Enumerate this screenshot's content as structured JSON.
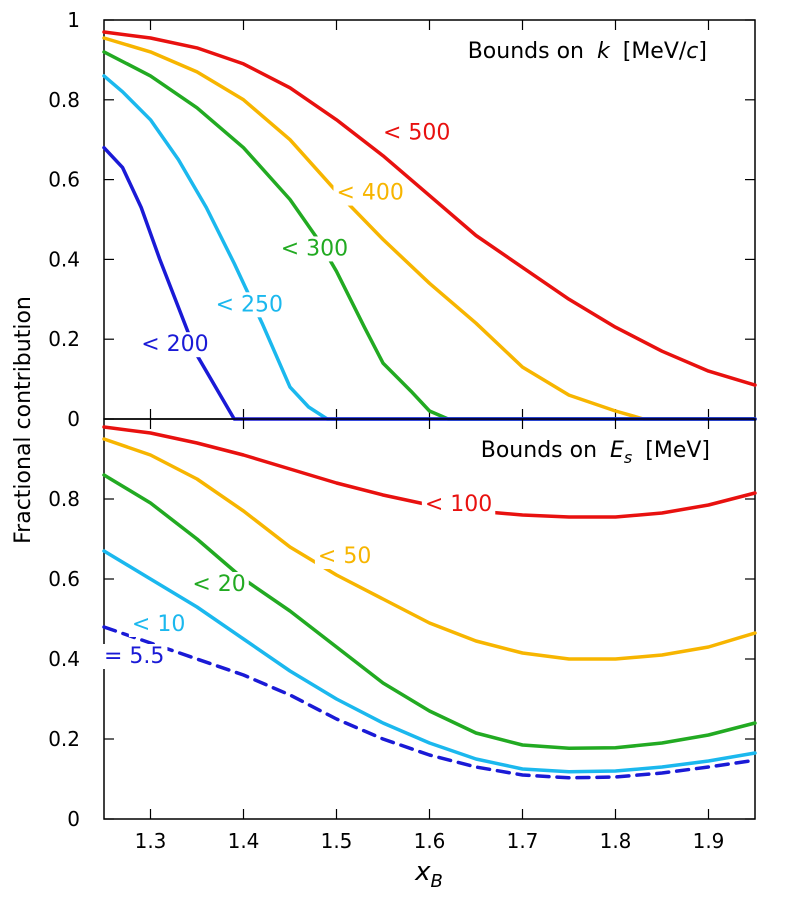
{
  "chart_data": [
    {
      "type": "line",
      "title_prefix": "Bounds on",
      "title_var": "k",
      "title_unit": "[MeV/",
      "title_unit_var": "c",
      "title_unit_close": "]",
      "xlim": [
        1.25,
        1.95
      ],
      "ylim": [
        0,
        1
      ],
      "yticks": [
        "0",
        "0.2",
        "0.4",
        "0.6",
        "0.8",
        "1"
      ],
      "ytick_values": [
        0,
        0.2,
        0.4,
        0.6,
        0.8,
        1.0
      ],
      "series": [
        {
          "name": "< 500",
          "label": "< 500",
          "color": "#e8110f",
          "dashed": false,
          "x": [
            1.25,
            1.3,
            1.35,
            1.4,
            1.45,
            1.5,
            1.55,
            1.6,
            1.65,
            1.7,
            1.75,
            1.8,
            1.85,
            1.9,
            1.95
          ],
          "y": [
            0.97,
            0.955,
            0.93,
            0.89,
            0.83,
            0.75,
            0.66,
            0.56,
            0.46,
            0.38,
            0.3,
            0.23,
            0.17,
            0.12,
            0.085
          ],
          "label_pos": [
            1.55,
            0.72
          ]
        },
        {
          "name": "< 400",
          "label": "< 400",
          "color": "#f7b500",
          "dashed": false,
          "x": [
            1.25,
            1.3,
            1.35,
            1.4,
            1.45,
            1.5,
            1.55,
            1.6,
            1.65,
            1.7,
            1.75,
            1.8,
            1.83,
            1.87,
            1.95
          ],
          "y": [
            0.955,
            0.92,
            0.87,
            0.8,
            0.7,
            0.57,
            0.45,
            0.34,
            0.24,
            0.13,
            0.06,
            0.02,
            0.0,
            0.0,
            0.0
          ],
          "label_pos": [
            1.5,
            0.57
          ]
        },
        {
          "name": "< 300",
          "label": "< 300",
          "color": "#22aa22",
          "dashed": false,
          "x": [
            1.25,
            1.3,
            1.35,
            1.4,
            1.45,
            1.48,
            1.5,
            1.53,
            1.55,
            1.58,
            1.6,
            1.62,
            1.95
          ],
          "y": [
            0.92,
            0.86,
            0.78,
            0.68,
            0.55,
            0.45,
            0.37,
            0.23,
            0.14,
            0.07,
            0.02,
            0.0,
            0.0
          ],
          "label_pos": [
            1.44,
            0.43
          ]
        },
        {
          "name": "< 250",
          "label": "< 250",
          "color": "#1bb8ee",
          "dashed": false,
          "x": [
            1.25,
            1.27,
            1.3,
            1.33,
            1.36,
            1.39,
            1.42,
            1.45,
            1.47,
            1.49,
            1.95
          ],
          "y": [
            0.86,
            0.82,
            0.75,
            0.65,
            0.53,
            0.39,
            0.24,
            0.08,
            0.03,
            0.0,
            0.0
          ],
          "label_pos": [
            1.37,
            0.29
          ]
        },
        {
          "name": "< 200",
          "label": "< 200",
          "color": "#1a1ad6",
          "dashed": false,
          "x": [
            1.25,
            1.27,
            1.29,
            1.31,
            1.33,
            1.35,
            1.37,
            1.39,
            1.95
          ],
          "y": [
            0.68,
            0.63,
            0.53,
            0.4,
            0.28,
            0.16,
            0.08,
            0.0,
            0.0
          ],
          "label_pos": [
            1.29,
            0.19
          ]
        }
      ]
    },
    {
      "type": "line",
      "title_prefix": "Bounds on",
      "title_var": "E",
      "title_var_sub": "s",
      "title_unit": "[MeV]",
      "xlabel": "x",
      "xlabel_sub": "B",
      "ylabel": "Fractional contribution",
      "xlim": [
        1.25,
        1.95
      ],
      "ylim": [
        0,
        1
      ],
      "xticks": [
        "1.3",
        "1.4",
        "1.5",
        "1.6",
        "1.7",
        "1.8",
        "1.9"
      ],
      "xtick_values": [
        1.3,
        1.4,
        1.5,
        1.6,
        1.7,
        1.8,
        1.9
      ],
      "yticks": [
        "0",
        "0.2",
        "0.4",
        "0.6",
        "0.8"
      ],
      "ytick_values": [
        0,
        0.2,
        0.4,
        0.6,
        0.8
      ],
      "series": [
        {
          "name": "< 100",
          "label": "< 100",
          "color": "#e8110f",
          "dashed": false,
          "x": [
            1.25,
            1.3,
            1.35,
            1.4,
            1.45,
            1.5,
            1.55,
            1.6,
            1.65,
            1.7,
            1.75,
            1.8,
            1.85,
            1.9,
            1.95
          ],
          "y": [
            0.98,
            0.965,
            0.94,
            0.91,
            0.875,
            0.84,
            0.81,
            0.785,
            0.77,
            0.76,
            0.755,
            0.755,
            0.765,
            0.785,
            0.815
          ],
          "label_pos": [
            1.595,
            0.79
          ]
        },
        {
          "name": "< 50",
          "label": "< 50",
          "color": "#f7b500",
          "dashed": false,
          "x": [
            1.25,
            1.3,
            1.35,
            1.4,
            1.45,
            1.5,
            1.55,
            1.6,
            1.65,
            1.7,
            1.75,
            1.8,
            1.85,
            1.9,
            1.95
          ],
          "y": [
            0.95,
            0.91,
            0.85,
            0.77,
            0.68,
            0.61,
            0.55,
            0.49,
            0.445,
            0.415,
            0.4,
            0.4,
            0.41,
            0.43,
            0.465
          ],
          "label_pos": [
            1.48,
            0.66
          ]
        },
        {
          "name": "< 20",
          "label": "< 20",
          "color": "#22aa22",
          "dashed": false,
          "x": [
            1.25,
            1.3,
            1.35,
            1.4,
            1.45,
            1.5,
            1.55,
            1.6,
            1.65,
            1.7,
            1.75,
            1.8,
            1.85,
            1.9,
            1.95
          ],
          "y": [
            0.86,
            0.79,
            0.7,
            0.6,
            0.52,
            0.43,
            0.34,
            0.27,
            0.215,
            0.185,
            0.177,
            0.178,
            0.19,
            0.21,
            0.24
          ],
          "label_pos": [
            1.345,
            0.59
          ]
        },
        {
          "name": "< 10",
          "label": "< 10",
          "color": "#1bb8ee",
          "dashed": false,
          "x": [
            1.25,
            1.3,
            1.35,
            1.4,
            1.45,
            1.5,
            1.55,
            1.6,
            1.65,
            1.7,
            1.75,
            1.8,
            1.85,
            1.9,
            1.95
          ],
          "y": [
            0.67,
            0.6,
            0.53,
            0.45,
            0.37,
            0.3,
            0.24,
            0.19,
            0.15,
            0.125,
            0.118,
            0.12,
            0.13,
            0.145,
            0.165
          ],
          "label_pos": [
            1.28,
            0.49
          ]
        },
        {
          "name": "= 5.5",
          "label": "= 5.5",
          "color": "#1a1ad6",
          "dashed": true,
          "x": [
            1.25,
            1.3,
            1.35,
            1.4,
            1.45,
            1.5,
            1.55,
            1.6,
            1.65,
            1.7,
            1.75,
            1.8,
            1.85,
            1.9,
            1.95
          ],
          "y": [
            0.48,
            0.44,
            0.4,
            0.36,
            0.31,
            0.25,
            0.2,
            0.16,
            0.13,
            0.11,
            0.103,
            0.105,
            0.115,
            0.13,
            0.147
          ],
          "label_pos": [
            1.25,
            0.41
          ]
        }
      ]
    }
  ]
}
